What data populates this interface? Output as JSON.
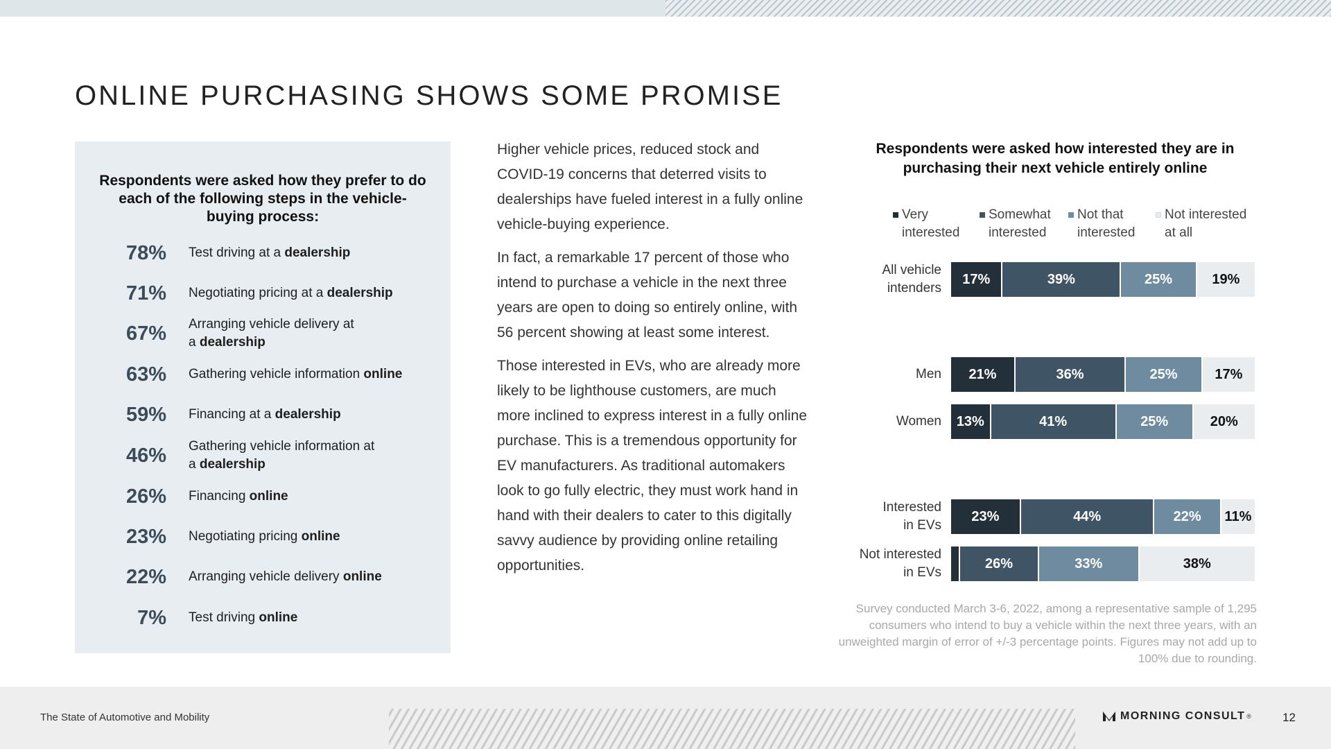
{
  "page": {
    "title": "ONLINE PURCHASING SHOWS SOME PROMISE",
    "footer_left": "The State of Automotive and Mobility",
    "brand": "MORNING CONSULT",
    "brand_mark": "®",
    "page_number": "12"
  },
  "steps_panel": {
    "heading": "Respondents were asked how they prefer to do each of the following steps in the vehicle-buying process:",
    "items": [
      {
        "pct": "78%",
        "line1": "Test driving at a ",
        "bold": "dealership"
      },
      {
        "pct": "71%",
        "line1": "Negotiating pricing at a ",
        "bold": "dealership"
      },
      {
        "pct": "67%",
        "line1": "Arranging vehicle delivery at",
        "line2": "a ",
        "bold": "dealership"
      },
      {
        "pct": "63%",
        "line1": "Gathering vehicle information ",
        "bold": "online"
      },
      {
        "pct": "59%",
        "line1": "Financing at a ",
        "bold": "dealership"
      },
      {
        "pct": "46%",
        "line1": "Gathering vehicle information at",
        "line2": "a ",
        "bold": "dealership"
      },
      {
        "pct": "26%",
        "line1": "Financing ",
        "bold": "online"
      },
      {
        "pct": "23%",
        "line1": "Negotiating pricing ",
        "bold": "online"
      },
      {
        "pct": "22%",
        "line1": "Arranging vehicle delivery ",
        "bold": "online"
      },
      {
        "pct": "7%",
        "line1": "Test driving ",
        "bold": "online"
      }
    ]
  },
  "body": {
    "paragraphs": [
      "Higher vehicle prices, reduced stock and COVID-19 concerns that deterred visits to dealerships have fueled interest in a fully online vehicle-buying experience.",
      "In fact, a remarkable 17 percent of those who intend to purchase a vehicle in the next three years are open to doing so entirely online, with 56 percent showing at least some interest.",
      "Those interested in EVs, who are already more likely to be lighthouse customers, are much more inclined to express interest in a fully online purchase. This is a tremendous opportunity for EV manufacturers. As traditional automakers look to go fully electric, they must work hand in hand with their dealers to cater to this digitally savvy audience by providing online retailing opportunities."
    ]
  },
  "chart_data": {
    "type": "bar",
    "orientation": "horizontal",
    "stacked": true,
    "title": "Respondents were asked how interested they are in purchasing their next vehicle entirely online",
    "categories": [
      [
        "All vehicle",
        "intenders"
      ],
      [
        "Men"
      ],
      [
        "Women"
      ],
      [
        "Interested",
        "in EVs"
      ],
      [
        "Not interested",
        "in EVs"
      ]
    ],
    "series": [
      {
        "name": "Very interested",
        "legend_lines": [
          "Very",
          "interested"
        ],
        "color": "#243039",
        "label_color": "#ffffff",
        "values": [
          17,
          21,
          13,
          23,
          3
        ],
        "labels": [
          "17%",
          "21%",
          "13%",
          "23%",
          ""
        ]
      },
      {
        "name": "Somewhat interested",
        "legend_lines": [
          "Somewhat",
          "interested"
        ],
        "color": "#3f5565",
        "label_color": "#ffffff",
        "values": [
          39,
          36,
          41,
          44,
          26
        ],
        "labels": [
          "39%",
          "36%",
          "41%",
          "44%",
          "26%"
        ]
      },
      {
        "name": "Not that interested",
        "legend_lines": [
          "Not that",
          "interested"
        ],
        "color": "#6e8ba0",
        "label_color": "#ffffff",
        "values": [
          25,
          25,
          25,
          22,
          33
        ],
        "labels": [
          "25%",
          "25%",
          "25%",
          "22%",
          "33%"
        ]
      },
      {
        "name": "Not interested at all",
        "legend_lines": [
          "Not interested",
          "at all"
        ],
        "color": "#e9edf0",
        "label_color": "#111111",
        "values": [
          19,
          17,
          20,
          11,
          38
        ],
        "labels": [
          "19%",
          "17%",
          "20%",
          "11%",
          "38%"
        ]
      }
    ],
    "xlim": [
      0,
      100
    ],
    "legend_position": "top"
  },
  "footnote": "Survey conducted March 3-6, 2022, among a representative sample of 1,295 consumers who intend to buy a vehicle within the next three years, with an unweighted margin of error of +/-3 percentage points. Figures may not add up to 100% due to rounding."
}
